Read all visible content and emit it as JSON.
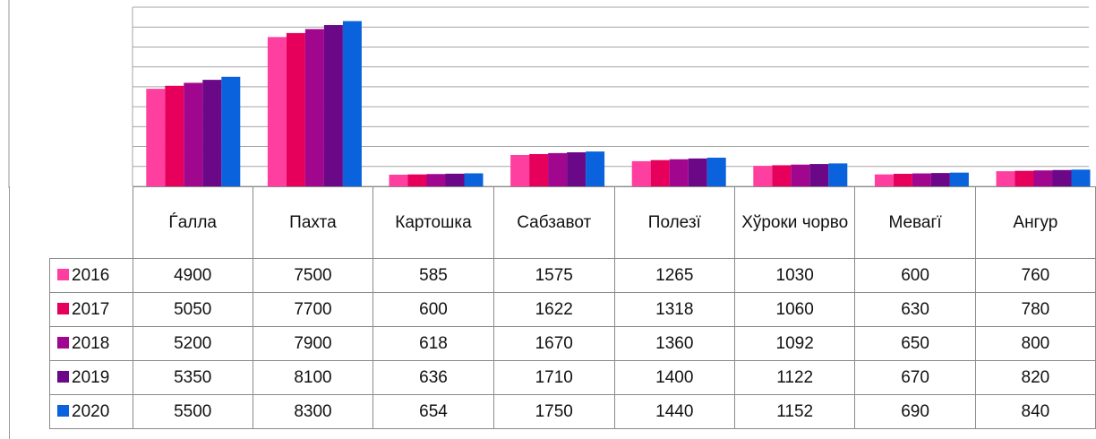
{
  "chart_data": {
    "type": "bar",
    "categories": [
      "Ѓалла",
      "Пахта",
      "Картошка",
      "Сабзавот",
      "Полезї",
      "Хўроки чорво",
      "Мевагї",
      "Ангур"
    ],
    "series": [
      {
        "name": "2016",
        "color": "#ff3f9f",
        "values": [
          4900,
          7500,
          585,
          1575,
          1265,
          1030,
          600,
          760
        ]
      },
      {
        "name": "2017",
        "color": "#e6005c",
        "values": [
          5050,
          7700,
          600,
          1622,
          1318,
          1060,
          630,
          780
        ]
      },
      {
        "name": "2018",
        "color": "#a0068e",
        "values": [
          5200,
          7900,
          618,
          1670,
          1360,
          1092,
          650,
          800
        ]
      },
      {
        "name": "2019",
        "color": "#6a0888",
        "values": [
          5350,
          8100,
          636,
          1710,
          1400,
          1122,
          670,
          820
        ]
      },
      {
        "name": "2020",
        "color": "#0a62dc",
        "values": [
          5500,
          8300,
          654,
          1750,
          1440,
          1152,
          690,
          840
        ]
      }
    ],
    "ylim": [
      0,
      9000
    ],
    "yticks": [
      0,
      1000,
      2000,
      3000,
      4000,
      5000,
      6000,
      7000,
      8000,
      9000
    ],
    "grid": true
  }
}
